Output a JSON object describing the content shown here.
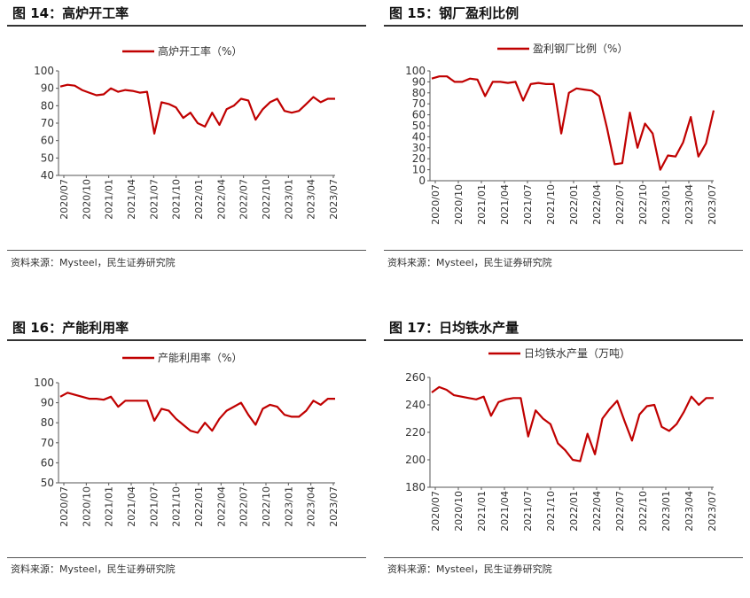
{
  "colors": {
    "series": "#c00000",
    "axis": "#333333",
    "rule": "#333333"
  },
  "source_text": "资料来源：Mysteel，民生证券研究院",
  "chart_data": [
    {
      "title": "图 14：高炉开工率",
      "type": "line",
      "series": [
        {
          "name": "高炉开工率（%）"
        }
      ],
      "ylim": [
        40,
        100
      ],
      "yticks": [
        40,
        50,
        60,
        70,
        80,
        90,
        100
      ],
      "xticks": [
        "2020/07",
        "2020/10",
        "2021/01",
        "2021/04",
        "2021/07",
        "2021/10",
        "2022/01",
        "2022/04",
        "2022/07",
        "2022/10",
        "2023/01",
        "2023/04",
        "2023/07"
      ],
      "x": [
        "2020/07",
        "2020/08",
        "2020/09",
        "2020/10",
        "2020/11",
        "2020/12",
        "2021/01",
        "2021/02",
        "2021/03",
        "2021/04",
        "2021/05",
        "2021/06",
        "2021/07",
        "2021/07b",
        "2021/08",
        "2021/09",
        "2021/10",
        "2021/11",
        "2021/12",
        "2022/01",
        "2022/02",
        "2022/03",
        "2022/04",
        "2022/05",
        "2022/06",
        "2022/07",
        "2022/08",
        "2022/09",
        "2022/10",
        "2022/11",
        "2022/12",
        "2023/01",
        "2023/02",
        "2023/03",
        "2023/04",
        "2023/05",
        "2023/06",
        "2023/07",
        "2023/08"
      ],
      "values": [
        91,
        92,
        91.5,
        89,
        87.5,
        86,
        86.5,
        90,
        88,
        89,
        88.5,
        87.5,
        88,
        64,
        82,
        81,
        79,
        73,
        76,
        70,
        68,
        76,
        69,
        78,
        80,
        84,
        83,
        72,
        78,
        82,
        84,
        77,
        76,
        77,
        81,
        85,
        82,
        84,
        84
      ],
      "grid": false,
      "legend": "top"
    },
    {
      "title": "图 15：钢厂盈利比例",
      "type": "line",
      "series": [
        {
          "name": "盈利钢厂比例（%）"
        }
      ],
      "ylim": [
        0,
        100
      ],
      "yticks": [
        0,
        10,
        20,
        30,
        40,
        50,
        60,
        70,
        80,
        90,
        100
      ],
      "xticks": [
        "2020/07",
        "2020/10",
        "2021/01",
        "2021/04",
        "2021/07",
        "2021/10",
        "2022/01",
        "2022/04",
        "2022/07",
        "2022/10",
        "2023/01",
        "2023/04",
        "2023/07"
      ],
      "x": [
        "2020/07",
        "2020/08",
        "2020/09",
        "2020/10",
        "2020/11",
        "2020/12",
        "2021/01",
        "2021/02",
        "2021/03",
        "2021/04",
        "2021/05",
        "2021/06",
        "2021/07",
        "2021/08",
        "2021/09",
        "2021/10",
        "2021/11",
        "2021/12",
        "2022/01",
        "2022/02",
        "2022/03",
        "2022/04",
        "2022/05",
        "2022/06",
        "2022/07",
        "2022/08",
        "2022/09",
        "2022/10",
        "2022/11",
        "2022/12",
        "2023/01",
        "2023/02",
        "2023/03",
        "2023/04",
        "2023/05",
        "2023/06",
        "2023/07",
        "2023/08"
      ],
      "values": [
        93,
        95,
        95,
        90,
        90,
        93,
        92,
        77,
        90,
        90,
        89,
        90,
        73,
        88,
        89,
        88,
        88,
        43,
        80,
        84,
        83,
        82,
        77,
        48,
        15,
        16,
        62,
        30,
        52,
        43,
        10,
        23,
        22,
        35,
        58,
        22,
        34,
        64
      ],
      "grid": false,
      "legend": "top"
    },
    {
      "title": "图 16：产能利用率",
      "type": "line",
      "series": [
        {
          "name": "产能利用率（%）"
        }
      ],
      "ylim": [
        50,
        100
      ],
      "yticks": [
        50,
        60,
        70,
        80,
        90,
        100
      ],
      "xticks": [
        "2020/07",
        "2020/10",
        "2021/01",
        "2021/04",
        "2021/07",
        "2021/10",
        "2022/01",
        "2022/04",
        "2022/07",
        "2022/10",
        "2023/01",
        "2023/04",
        "2023/07"
      ],
      "x": [
        "2020/07",
        "2020/08",
        "2020/09",
        "2020/10",
        "2020/11",
        "2020/12",
        "2021/01",
        "2021/02",
        "2021/03",
        "2021/04",
        "2021/05",
        "2021/06",
        "2021/07",
        "2021/07b",
        "2021/08",
        "2021/09",
        "2021/10",
        "2021/11",
        "2021/12",
        "2022/01",
        "2022/02",
        "2022/03",
        "2022/04",
        "2022/05",
        "2022/06",
        "2022/07",
        "2022/08",
        "2022/09",
        "2022/10",
        "2022/11",
        "2022/12",
        "2023/01",
        "2023/02",
        "2023/03",
        "2023/04",
        "2023/05",
        "2023/06",
        "2023/07",
        "2023/08"
      ],
      "values": [
        93,
        95,
        94,
        93,
        92,
        92,
        91.5,
        93,
        88,
        91,
        91,
        91,
        91,
        81,
        87,
        86,
        82,
        79,
        76,
        75,
        80,
        76,
        82,
        86,
        88,
        90,
        84,
        79,
        87,
        89,
        88,
        84,
        83,
        83,
        86,
        91,
        89,
        92,
        92
      ],
      "grid": false,
      "legend": "top"
    },
    {
      "title": "图 17：日均铁水产量",
      "type": "line",
      "series": [
        {
          "name": "日均铁水产量（万吨）"
        }
      ],
      "ylim": [
        180,
        260
      ],
      "yticks": [
        180,
        200,
        220,
        240,
        260
      ],
      "xticks": [
        "2020/07",
        "2020/10",
        "2021/01",
        "2021/04",
        "2021/07",
        "2021/10",
        "2022/01",
        "2022/04",
        "2022/07",
        "2022/10",
        "2023/01",
        "2023/04",
        "2023/07"
      ],
      "x": [
        "2020/07",
        "2020/08",
        "2020/09",
        "2020/10",
        "2020/11",
        "2020/12",
        "2021/01",
        "2021/02",
        "2021/03",
        "2021/04",
        "2021/05",
        "2021/06",
        "2021/07",
        "2021/07b",
        "2021/08",
        "2021/09",
        "2021/10",
        "2021/11",
        "2021/12",
        "2022/01",
        "2022/02",
        "2022/03",
        "2022/04",
        "2022/05",
        "2022/06",
        "2022/07",
        "2022/08",
        "2022/09",
        "2022/10",
        "2022/11",
        "2022/12",
        "2023/01",
        "2023/02",
        "2023/03",
        "2023/04",
        "2023/05",
        "2023/06",
        "2023/07",
        "2023/08"
      ],
      "values": [
        249,
        253,
        251,
        247,
        246,
        245,
        244,
        246,
        232,
        242,
        244,
        245,
        245,
        217,
        236,
        230,
        226,
        212,
        207,
        200,
        199,
        219,
        204,
        230,
        237,
        243,
        228,
        214,
        233,
        239,
        240,
        224,
        221,
        226,
        235,
        246,
        240,
        245,
        245
      ],
      "grid": false,
      "legend": "top"
    }
  ]
}
